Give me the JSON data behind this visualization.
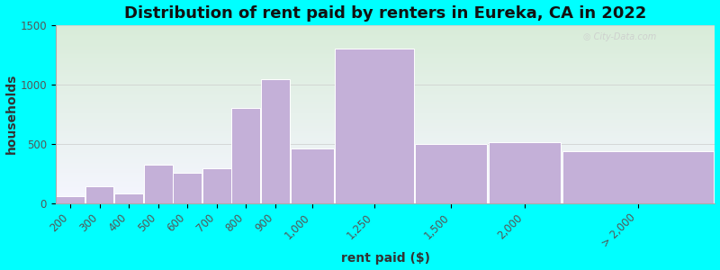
{
  "title": "Distribution of rent paid by renters in Eureka, CA in 2022",
  "xlabel": "rent paid ($)",
  "ylabel": "households",
  "background_color": "#00FFFF",
  "bar_color": "#c4b0d8",
  "bar_edge_color": "#ffffff",
  "categories": [
    "200",
    "300",
    "400",
    "500",
    "600",
    "700",
    "800",
    "900",
    "1,000",
    "1,250",
    "1,500",
    "2,000",
    "> 2,000"
  ],
  "values": [
    55,
    140,
    80,
    325,
    255,
    290,
    800,
    1040,
    460,
    1300,
    500,
    515,
    435
  ],
  "bin_edges": [
    150,
    250,
    350,
    450,
    550,
    650,
    750,
    850,
    950,
    1100,
    1375,
    1625,
    1875,
    2400
  ],
  "ylim": [
    0,
    1500
  ],
  "yticks": [
    0,
    500,
    1000,
    1500
  ],
  "title_fontsize": 13,
  "axis_label_fontsize": 10,
  "tick_fontsize": 8.5
}
